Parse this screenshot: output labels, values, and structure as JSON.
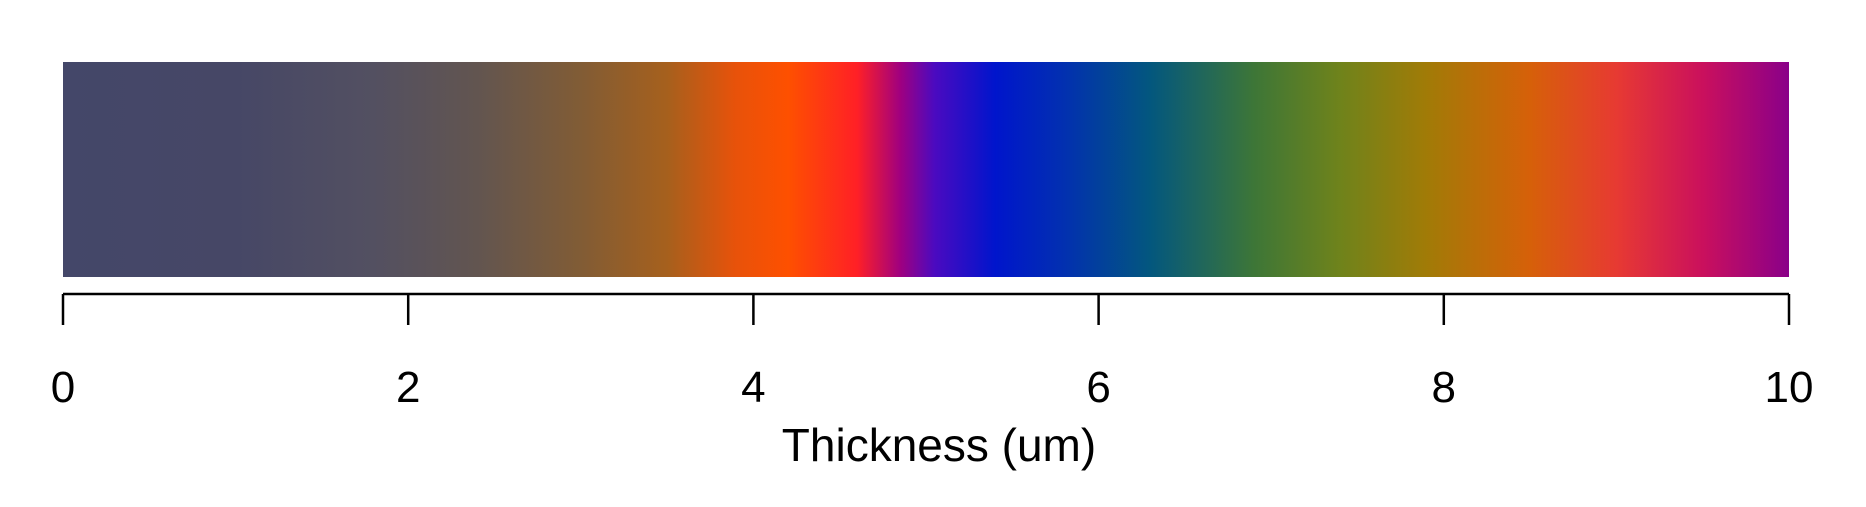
{
  "chart_data": {
    "type": "colorbar",
    "title": "",
    "xlabel": "Thickness (um)",
    "ylabel": "",
    "xlim": [
      0,
      10
    ],
    "ticks": [
      0,
      2,
      4,
      6,
      8,
      10
    ],
    "tick_labels": [
      "0",
      "2",
      "4",
      "6",
      "8",
      "10"
    ],
    "grid": false,
    "color_stops": [
      {
        "value": 0.0,
        "color": "#444769"
      },
      {
        "value": 1.0,
        "color": "#464766"
      },
      {
        "value": 1.8,
        "color": "#535061"
      },
      {
        "value": 2.4,
        "color": "#625550"
      },
      {
        "value": 3.0,
        "color": "#815c35"
      },
      {
        "value": 3.5,
        "color": "#a6601d"
      },
      {
        "value": 3.9,
        "color": "#e8520a"
      },
      {
        "value": 4.2,
        "color": "#fe5000"
      },
      {
        "value": 4.6,
        "color": "#ff2026"
      },
      {
        "value": 4.85,
        "color": "#a0007f"
      },
      {
        "value": 5.05,
        "color": "#4b0ac0"
      },
      {
        "value": 5.4,
        "color": "#0015cc"
      },
      {
        "value": 5.8,
        "color": "#0230b0"
      },
      {
        "value": 6.3,
        "color": "#03577e"
      },
      {
        "value": 6.9,
        "color": "#3d7637"
      },
      {
        "value": 7.4,
        "color": "#6f831b"
      },
      {
        "value": 7.9,
        "color": "#a17b07"
      },
      {
        "value": 8.5,
        "color": "#d66009"
      },
      {
        "value": 9.0,
        "color": "#e73a32"
      },
      {
        "value": 9.5,
        "color": "#ca105d"
      },
      {
        "value": 10.0,
        "color": "#8a0089"
      }
    ]
  }
}
